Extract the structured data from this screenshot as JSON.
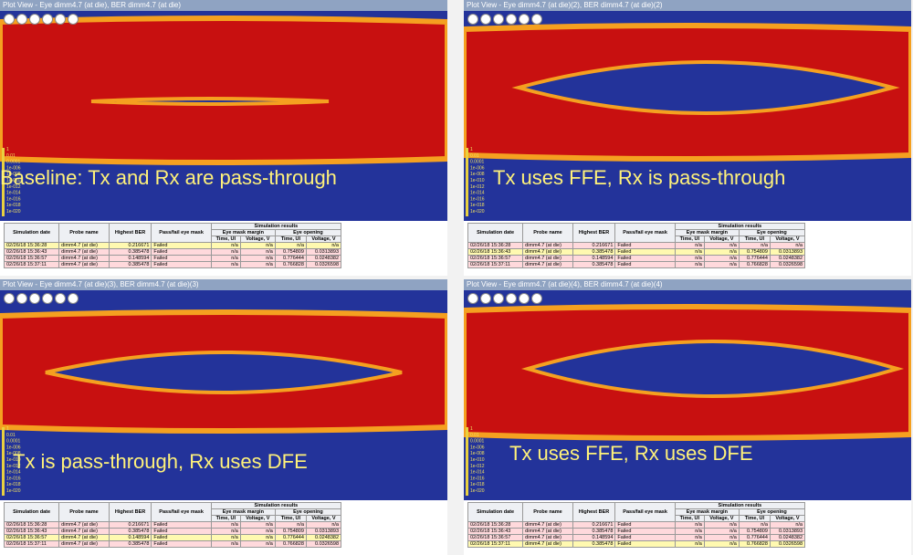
{
  "panels": [
    {
      "title": "Plot View - Eye dimm4.7 (at die), BER dimm4.7 (at die)",
      "caption": "Baseline: Tx and Rx are pass-through"
    },
    {
      "title": "Plot View - Eye dimm4.7 (at die)(2), BER dimm4.7 (at die)(2)",
      "caption": "Tx uses FFE, Rx is pass-through"
    },
    {
      "title": "Plot View - Eye dimm4.7 (at die)(3), BER dimm4.7 (at die)(3)",
      "caption": "Tx is pass-through, Rx uses DFE"
    },
    {
      "title": "Plot View - Eye dimm4.7 (at die)(4), BER dimm4.7 (at die)(4)",
      "caption": "Tx uses FFE, Rx uses DFE"
    }
  ],
  "legend_labels": [
    "1",
    "0.01",
    "0.0001",
    "1e-006",
    "1e-008",
    "1e-010",
    "1e-012",
    "1e-014",
    "1e-016",
    "1e-018",
    "1e-020"
  ],
  "table": {
    "columns": [
      "Simulation date",
      "Probe name",
      "Highest BER",
      "Pass/fail eye mask"
    ],
    "group": "Simulation results",
    "subgroups": [
      "Eye mask margin",
      "Eye opening"
    ],
    "subcolumns": [
      "Time, UI",
      "Voltage, V",
      "Time, UI",
      "Voltage, V"
    ],
    "rows": [
      [
        "02/26/18 15:36:28",
        "dimm4.7 (at die)",
        "0.216671",
        "Failed",
        "n/a",
        "n/a",
        "n/a",
        "n/a"
      ],
      [
        "02/26/18 15:36:43",
        "dimm4.7 (at die)",
        "0.385478",
        "Failed",
        "n/a",
        "n/a",
        "0.754809",
        "0.0313893"
      ],
      [
        "02/26/18 15:36:57",
        "dimm4.7 (at die)",
        "0.148594",
        "Failed",
        "n/a",
        "n/a",
        "0.776444",
        "0.0248382"
      ],
      [
        "02/26/18 15:37:11",
        "dimm4.7 (at die)",
        "0.385478",
        "Failed",
        "n/a",
        "n/a",
        "0.766828",
        "0.0326598"
      ]
    ]
  }
}
